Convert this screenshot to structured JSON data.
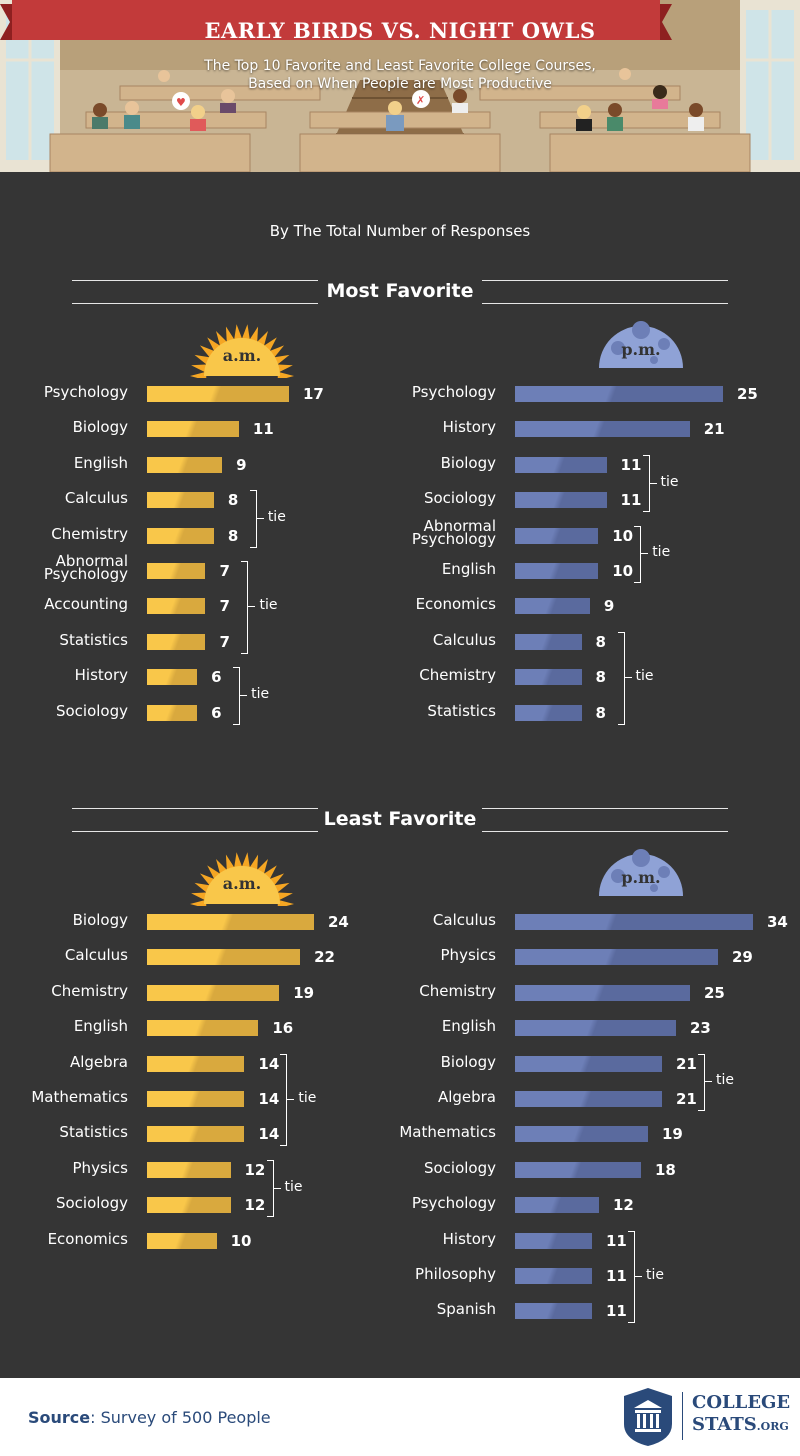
{
  "header": {
    "title": "EARLY BIRDS VS. NIGHT OWLS",
    "subtitle_line1": "The Top 10 Favorite and Least Favorite College Courses,",
    "subtitle_line2": "Based on When People are Most Productive"
  },
  "byline": "By The Total Number of Responses",
  "sections": {
    "most": "Most Favorite",
    "least": "Least Favorite"
  },
  "badges": {
    "am": "a.m.",
    "pm": "p.m."
  },
  "tie_label": "tie",
  "colors": {
    "am_bar": "#f9c74a",
    "am_bar_dark": "#d9a93e",
    "pm_bar": "#6d7fb7",
    "pm_bar_dark": "#5a6a9e",
    "background": "#353535"
  },
  "chart_data": [
    {
      "type": "bar",
      "title": "Most Favorite",
      "series_label": "a.m.",
      "categories": [
        "Psychology",
        "Biology",
        "English",
        "Calculus",
        "Chemistry",
        "Abnormal Psychology",
        "Accounting",
        "Statistics",
        "History",
        "Sociology"
      ],
      "values": [
        17,
        11,
        9,
        8,
        8,
        7,
        7,
        7,
        6,
        6
      ],
      "ties": [
        [
          3,
          4
        ],
        [
          5,
          7
        ],
        [
          8,
          9
        ]
      ]
    },
    {
      "type": "bar",
      "title": "Most Favorite",
      "series_label": "p.m.",
      "categories": [
        "Psychology",
        "History",
        "Biology",
        "Sociology",
        "Abnormal Psychology",
        "English",
        "Economics",
        "Calculus",
        "Chemistry",
        "Statistics"
      ],
      "values": [
        25,
        21,
        11,
        11,
        10,
        10,
        9,
        8,
        8,
        8
      ],
      "ties": [
        [
          2,
          3
        ],
        [
          4,
          5
        ],
        [
          7,
          9
        ]
      ]
    },
    {
      "type": "bar",
      "title": "Least Favorite",
      "series_label": "a.m.",
      "categories": [
        "Biology",
        "Calculus",
        "Chemistry",
        "English",
        "Algebra",
        "Mathematics",
        "Statistics",
        "Physics",
        "Sociology",
        "Economics"
      ],
      "values": [
        24,
        22,
        19,
        16,
        14,
        14,
        14,
        12,
        12,
        10
      ],
      "ties": [
        [
          4,
          6
        ],
        [
          7,
          8
        ]
      ]
    },
    {
      "type": "bar",
      "title": "Least Favorite",
      "series_label": "p.m.",
      "categories": [
        "Calculus",
        "Physics",
        "Chemistry",
        "English",
        "Biology",
        "Algebra",
        "Mathematics",
        "Sociology",
        "Psychology",
        "History",
        "Philosophy",
        "Spanish"
      ],
      "values": [
        34,
        29,
        25,
        23,
        21,
        21,
        19,
        18,
        12,
        11,
        11,
        11
      ],
      "ties": [
        [
          4,
          5
        ],
        [
          9,
          11
        ]
      ]
    }
  ],
  "footer": {
    "source_bold": "Source",
    "source_text": ": Survey of 500 People",
    "logo_line1": "COLLEGE",
    "logo_line2": "STATS",
    "logo_suffix": ".ORG"
  }
}
